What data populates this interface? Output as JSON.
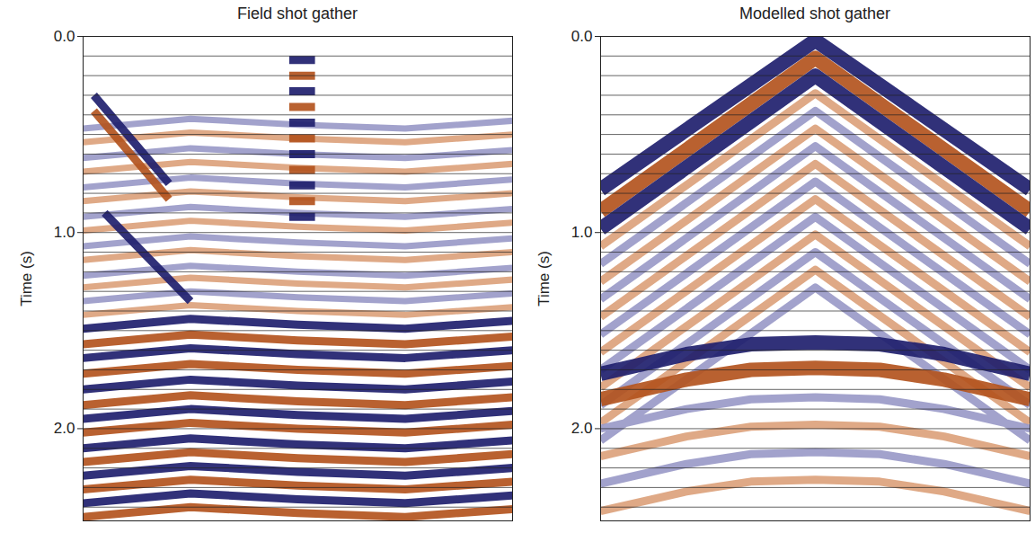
{
  "chart_data": [
    {
      "type": "line",
      "title": "Field shot gather",
      "ylabel": "Time (s)",
      "xlim": [
        -1,
        1
      ],
      "ylim": [
        0,
        2.47
      ],
      "yticks": [
        {
          "value": 0,
          "label": "0.0"
        },
        {
          "value": 1,
          "label": "1.0"
        },
        {
          "value": 2,
          "label": "2.0"
        }
      ],
      "tick_labels": "y",
      "grid": true,
      "gridlines": [
        0.1,
        0.2,
        0.3,
        0.4,
        0.5,
        0.6,
        0.7,
        0.8,
        0.9,
        1.0,
        1.1,
        1.2,
        1.3,
        1.4,
        1.5,
        1.6,
        1.7,
        1.8,
        1.9,
        2.0,
        2.1,
        2.2,
        2.3,
        2.4
      ],
      "series": [
        {
          "color": "#20206e",
          "x": [
            -0.04,
            0.08,
            null,
            -0.04,
            0.08,
            null,
            -0.04,
            0.08,
            null,
            -0.04,
            0.08,
            null,
            -0.04,
            0.08,
            null,
            -0.04,
            0.08,
            null,
            -1,
            -0.5,
            0,
            0.5,
            1,
            null,
            -1,
            -0.5,
            0,
            0.5,
            1,
            null,
            -1,
            -0.5,
            0,
            0.5,
            1,
            null,
            -1,
            -0.5,
            0,
            0.5,
            1,
            null,
            -1,
            -0.5,
            0,
            0.5,
            1,
            null,
            -1,
            -0.5,
            0,
            0.5,
            1,
            null,
            -1,
            -0.5,
            0,
            0.5,
            1,
            null,
            -0.95,
            -0.6,
            null,
            -0.9,
            -0.5
          ],
          "values": [
            0.12,
            0.12,
            null,
            0.28,
            0.28,
            null,
            0.44,
            0.44,
            null,
            0.6,
            0.6,
            null,
            0.76,
            0.76,
            null,
            0.92,
            0.92,
            null,
            1.49,
            1.44,
            1.47,
            1.49,
            1.45,
            null,
            1.64,
            1.59,
            1.62,
            1.64,
            1.6,
            null,
            1.8,
            1.75,
            1.78,
            1.8,
            1.76,
            null,
            1.95,
            1.9,
            1.93,
            1.95,
            1.91,
            null,
            2.1,
            2.05,
            2.08,
            2.1,
            2.06,
            null,
            2.24,
            2.19,
            2.22,
            2.24,
            2.2,
            null,
            2.38,
            2.33,
            2.36,
            2.38,
            2.34,
            null,
            0.3,
            0.75,
            null,
            0.9,
            1.35
          ]
        },
        {
          "color": "#b3541e",
          "x": [
            -0.04,
            0.08,
            null,
            -0.04,
            0.08,
            null,
            -0.04,
            0.08,
            null,
            -0.04,
            0.08,
            null,
            -0.04,
            0.08,
            null,
            -1,
            -0.5,
            0,
            0.5,
            1,
            null,
            -1,
            -0.5,
            0,
            0.5,
            1,
            null,
            -1,
            -0.5,
            0,
            0.5,
            1,
            null,
            -1,
            -0.5,
            0,
            0.5,
            1,
            null,
            -1,
            -0.5,
            0,
            0.5,
            1,
            null,
            -1,
            -0.5,
            0,
            0.5,
            1,
            null,
            -1,
            -0.5,
            0,
            0.5,
            1,
            null,
            -0.95,
            -0.6
          ],
          "values": [
            0.2,
            0.2,
            null,
            0.36,
            0.36,
            null,
            0.52,
            0.52,
            null,
            0.68,
            0.68,
            null,
            0.84,
            0.84,
            null,
            1.57,
            1.52,
            1.55,
            1.57,
            1.53,
            null,
            1.72,
            1.67,
            1.7,
            1.72,
            1.68,
            null,
            1.88,
            1.83,
            1.86,
            1.88,
            1.84,
            null,
            2.02,
            1.97,
            2.0,
            2.02,
            1.98,
            null,
            2.17,
            2.12,
            2.15,
            2.17,
            2.13,
            null,
            2.31,
            2.26,
            2.29,
            2.31,
            2.27,
            null,
            2.45,
            2.4,
            2.43,
            2.45,
            2.41,
            null,
            0.38,
            0.83
          ]
        },
        {
          "color": "#9a9ac8",
          "x": [
            -1,
            -0.5,
            0,
            0.5,
            1,
            null,
            -1,
            -0.5,
            0,
            0.5,
            1,
            null,
            -1,
            -0.5,
            0,
            0.5,
            1,
            null,
            -1,
            -0.5,
            0,
            0.5,
            1,
            null,
            -1,
            -0.5,
            0,
            0.5,
            1,
            null,
            -1,
            -0.5,
            0,
            0.5,
            1,
            null,
            -1,
            -0.5,
            0,
            0.5,
            1
          ],
          "values": [
            0.47,
            0.42,
            0.45,
            0.47,
            0.43,
            null,
            0.62,
            0.57,
            0.6,
            0.62,
            0.58,
            null,
            0.77,
            0.72,
            0.75,
            0.77,
            0.73,
            null,
            0.92,
            0.87,
            0.9,
            0.92,
            0.88,
            null,
            1.07,
            1.02,
            1.05,
            1.07,
            1.03,
            null,
            1.22,
            1.17,
            1.2,
            1.22,
            1.18,
            null,
            1.35,
            1.3,
            1.33,
            1.35,
            1.31
          ]
        },
        {
          "color": "#dca27c",
          "x": [
            -1,
            -0.5,
            0,
            0.5,
            1,
            null,
            -1,
            -0.5,
            0,
            0.5,
            1,
            null,
            -1,
            -0.5,
            0,
            0.5,
            1,
            null,
            -1,
            -0.5,
            0,
            0.5,
            1,
            null,
            -1,
            -0.5,
            0,
            0.5,
            1,
            null,
            -1,
            -0.5,
            0,
            0.5,
            1,
            null,
            -1,
            -0.5,
            0,
            0.5,
            1
          ],
          "values": [
            0.54,
            0.49,
            0.52,
            0.54,
            0.5,
            null,
            0.69,
            0.64,
            0.67,
            0.69,
            0.65,
            null,
            0.84,
            0.79,
            0.82,
            0.84,
            0.8,
            null,
            0.99,
            0.94,
            0.97,
            0.99,
            0.95,
            null,
            1.14,
            1.09,
            1.12,
            1.14,
            1.1,
            null,
            1.28,
            1.23,
            1.26,
            1.28,
            1.24,
            null,
            1.42,
            1.37,
            1.4,
            1.42,
            1.38
          ]
        }
      ]
    },
    {
      "type": "line",
      "title": "Modelled shot gather",
      "ylabel": "Time (s)",
      "xlim": [
        -1,
        1
      ],
      "ylim": [
        0,
        2.47
      ],
      "yticks": [
        {
          "value": 0,
          "label": "0.0"
        },
        {
          "value": 1,
          "label": "1.0"
        },
        {
          "value": 2,
          "label": "2.0"
        }
      ],
      "tick_labels": "y",
      "grid": true,
      "gridlines": [
        0.1,
        0.2,
        0.3,
        0.4,
        0.5,
        0.6,
        0.7,
        0.8,
        0.9,
        1.0,
        1.1,
        1.2,
        1.3,
        1.4,
        1.5,
        1.6,
        1.7,
        1.8,
        1.9,
        2.0,
        2.1,
        2.2,
        2.3,
        2.4
      ],
      "series": [
        {
          "color": "#20206e",
          "x": [
            -1,
            0,
            1,
            null,
            -1,
            0,
            1,
            null,
            -1,
            -0.6,
            -0.3,
            0,
            0.3,
            0.6,
            1
          ],
          "values": [
            0.78,
            0.02,
            0.78,
            null,
            0.98,
            0.2,
            0.98,
            null,
            1.72,
            1.62,
            1.57,
            1.56,
            1.57,
            1.62,
            1.72
          ]
        },
        {
          "color": "#b3541e",
          "x": [
            -1,
            0,
            1,
            null,
            -1,
            -0.6,
            -0.3,
            0,
            0.3,
            0.6,
            1
          ],
          "values": [
            0.89,
            0.11,
            0.89,
            null,
            1.85,
            1.75,
            1.7,
            1.69,
            1.7,
            1.75,
            1.85
          ]
        },
        {
          "color": "#9a9ac8",
          "x": [
            -1,
            0,
            1,
            null,
            -1,
            0,
            1,
            null,
            -1,
            0,
            1,
            null,
            -1,
            0,
            1,
            null,
            -1,
            0,
            1,
            null,
            -1,
            0,
            1,
            null,
            -1,
            -0.6,
            -0.3,
            0,
            0.3,
            0.6,
            1,
            null,
            -1,
            -0.6,
            -0.3,
            0,
            0.3,
            0.6,
            1
          ],
          "values": [
            1.16,
            0.38,
            1.16,
            null,
            1.34,
            0.56,
            1.34,
            null,
            1.52,
            0.74,
            1.52,
            null,
            1.7,
            0.92,
            1.7,
            null,
            1.88,
            1.1,
            1.88,
            null,
            2.06,
            1.28,
            2.06,
            null,
            2.0,
            1.9,
            1.85,
            1.84,
            1.85,
            1.9,
            2.0,
            null,
            2.28,
            2.18,
            2.13,
            2.12,
            2.13,
            2.18,
            2.28
          ]
        },
        {
          "color": "#dca27c",
          "x": [
            -1,
            0,
            1,
            null,
            -1,
            0,
            1,
            null,
            -1,
            0,
            1,
            null,
            -1,
            0,
            1,
            null,
            -1,
            0,
            1,
            null,
            -1,
            0,
            1,
            null,
            -1,
            -0.6,
            -0.3,
            0,
            0.3,
            0.6,
            1,
            null,
            -1,
            -0.6,
            -0.3,
            0,
            0.3,
            0.6,
            1
          ],
          "values": [
            1.07,
            0.29,
            1.07,
            null,
            1.25,
            0.47,
            1.25,
            null,
            1.43,
            0.65,
            1.43,
            null,
            1.61,
            0.83,
            1.61,
            null,
            1.79,
            1.01,
            1.79,
            null,
            1.97,
            1.19,
            1.97,
            null,
            2.14,
            2.04,
            1.99,
            1.98,
            1.99,
            2.04,
            2.14,
            null,
            2.42,
            2.32,
            2.27,
            2.26,
            2.27,
            2.32,
            2.42
          ]
        }
      ]
    }
  ]
}
